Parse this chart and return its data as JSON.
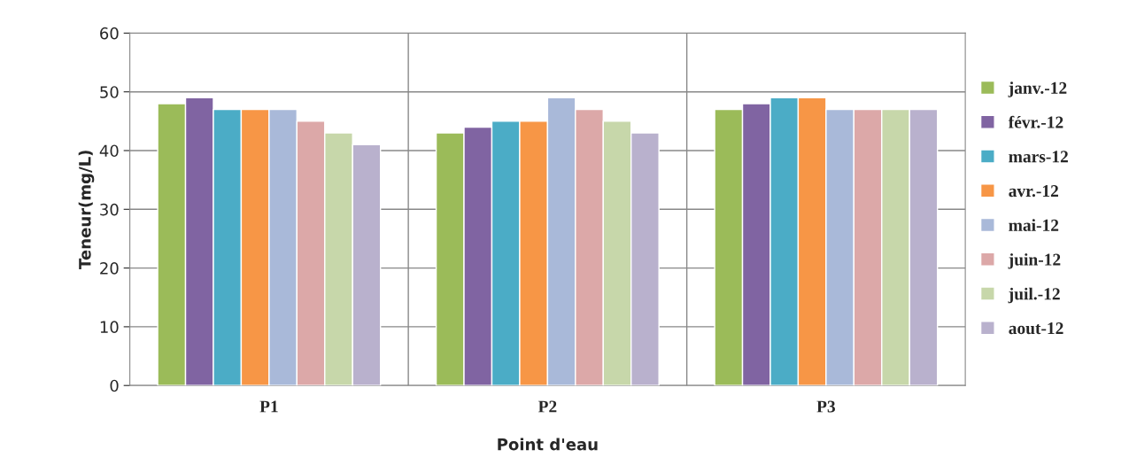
{
  "chart_data": {
    "type": "bar",
    "xlabel": "Point d'eau",
    "ylabel": "Teneur(mg/L)",
    "categories": [
      "P1",
      "P2",
      "P3"
    ],
    "series": [
      {
        "name": "janv.-12",
        "color": "#9bbb59",
        "values": [
          48,
          43,
          47
        ]
      },
      {
        "name": "févr.-12",
        "color": "#8064a2",
        "values": [
          49,
          44,
          48
        ]
      },
      {
        "name": "mars-12",
        "color": "#4bacc6",
        "values": [
          47,
          45,
          49
        ]
      },
      {
        "name": "avr.-12",
        "color": "#f79646",
        "values": [
          47,
          45,
          49
        ]
      },
      {
        "name": "mai-12",
        "color": "#a9b9d9",
        "values": [
          47,
          49,
          47
        ]
      },
      {
        "name": "juin-12",
        "color": "#dca8a8",
        "values": [
          45,
          47,
          47
        ]
      },
      {
        "name": "juil.-12",
        "color": "#c7d7aa",
        "values": [
          43,
          45,
          47
        ]
      },
      {
        "name": "aout-12",
        "color": "#b9b1cd",
        "values": [
          41,
          43,
          47
        ]
      }
    ],
    "ylim": [
      0,
      60
    ],
    "yticks": [
      0,
      10,
      20,
      30,
      40,
      50,
      60
    ],
    "grid": true,
    "legend": "right"
  }
}
